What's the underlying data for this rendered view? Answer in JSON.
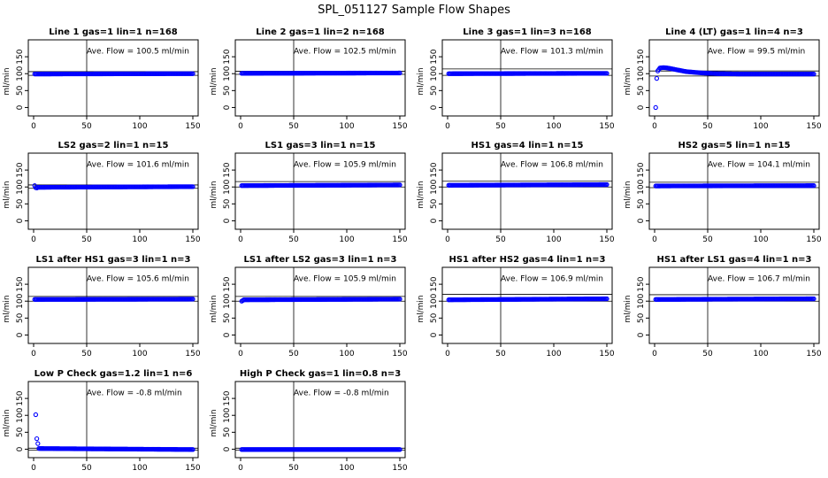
{
  "figure": {
    "title": "SPL_051127  Sample Flow Shapes",
    "colors": {
      "points": "#0000ff",
      "axes": "#000000",
      "background": "#ffffff"
    }
  },
  "chart_data": [
    {
      "type": "scatter",
      "title": "Line 1 gas=1 lin=1 n=168",
      "annotation": "Ave. Flow =  100.5  ml/min",
      "ylabel": "ml/min",
      "xlim": [
        0,
        150
      ],
      "ylim": [
        -25,
        200
      ],
      "xticks": [
        0,
        50,
        100,
        150
      ],
      "yticks": [
        0,
        50,
        100,
        150
      ],
      "hlines": [
        95,
        106
      ],
      "vline": 50,
      "series": [
        {
          "name": "flow",
          "points": [
            [
              1,
              99
            ],
            [
              150,
              100
            ]
          ],
          "profile": "flat",
          "level": 100
        }
      ]
    },
    {
      "type": "scatter",
      "title": "Line 2 gas=1 lin=2 n=168",
      "annotation": "Ave. Flow =  102.5  ml/min",
      "ylabel": "ml/min",
      "xlim": [
        0,
        150
      ],
      "ylim": [
        -25,
        200
      ],
      "xticks": [
        0,
        50,
        100,
        150
      ],
      "yticks": [
        0,
        50,
        100,
        150
      ],
      "hlines": [
        98,
        107
      ],
      "vline": 50,
      "series": [
        {
          "name": "flow",
          "points": [
            [
              1,
              101
            ],
            [
              150,
              102
            ]
          ],
          "profile": "flat",
          "level": 102
        }
      ]
    },
    {
      "type": "scatter",
      "title": "Line 3 gas=1 lin=3 n=168",
      "annotation": "Ave. Flow =  101.3  ml/min",
      "ylabel": "ml/min",
      "xlim": [
        0,
        150
      ],
      "ylim": [
        -25,
        200
      ],
      "xticks": [
        0,
        50,
        100,
        150
      ],
      "yticks": [
        0,
        50,
        100,
        150
      ],
      "hlines": [
        95,
        114
      ],
      "vline": 50,
      "series": [
        {
          "name": "flow",
          "points": [
            [
              1,
              100
            ],
            [
              150,
              101
            ]
          ],
          "profile": "flat",
          "level": 101
        }
      ]
    },
    {
      "type": "scatter",
      "title": "Line 4 (LT) gas=1 lin=4 n=3",
      "annotation": "Ave. Flow =  99.5  ml/min",
      "ylabel": "ml/min",
      "xlim": [
        0,
        150
      ],
      "ylim": [
        -25,
        200
      ],
      "xticks": [
        0,
        50,
        100,
        150
      ],
      "yticks": [
        0,
        50,
        100,
        150
      ],
      "hlines": [
        93,
        108
      ],
      "vline": 50,
      "series": [
        {
          "name": "flow",
          "points": [
            [
              1,
              0
            ],
            [
              2,
              86
            ],
            [
              3,
              108
            ],
            [
              5,
              117
            ],
            [
              8,
              118
            ],
            [
              12,
              117
            ],
            [
              20,
              112
            ],
            [
              30,
              106
            ],
            [
              45,
              102
            ],
            [
              60,
              100
            ],
            [
              80,
              99
            ],
            [
              150,
              99
            ]
          ],
          "profile": "startup",
          "level": 99
        }
      ]
    },
    {
      "type": "scatter",
      "title": "LS2 gas=2 lin=1 n=15",
      "annotation": "Ave. Flow =  101.6  ml/min",
      "ylabel": "ml/min",
      "xlim": [
        0,
        150
      ],
      "ylim": [
        -25,
        200
      ],
      "xticks": [
        0,
        50,
        100,
        150
      ],
      "yticks": [
        0,
        50,
        100,
        150
      ],
      "hlines": [
        96,
        106
      ],
      "vline": 50,
      "series": [
        {
          "name": "flow",
          "points": [
            [
              1,
              104
            ],
            [
              2,
              98
            ],
            [
              3,
              97
            ],
            [
              4,
              99
            ],
            [
              150,
              101
            ]
          ],
          "profile": "flat",
          "level": 101
        }
      ]
    },
    {
      "type": "scatter",
      "title": "LS1 gas=3 lin=1 n=15",
      "annotation": "Ave. Flow =  105.9  ml/min",
      "ylabel": "ml/min",
      "xlim": [
        0,
        150
      ],
      "ylim": [
        -25,
        200
      ],
      "xticks": [
        0,
        50,
        100,
        150
      ],
      "yticks": [
        0,
        50,
        100,
        150
      ],
      "hlines": [
        100,
        116
      ],
      "vline": 50,
      "series": [
        {
          "name": "flow",
          "points": [
            [
              1,
              104
            ],
            [
              150,
              106
            ]
          ],
          "profile": "flat",
          "level": 106
        }
      ]
    },
    {
      "type": "scatter",
      "title": "HS1 gas=4 lin=1 n=15",
      "annotation": "Ave. Flow =  106.8  ml/min",
      "ylabel": "ml/min",
      "xlim": [
        0,
        150
      ],
      "ylim": [
        -25,
        200
      ],
      "xticks": [
        0,
        50,
        100,
        150
      ],
      "yticks": [
        0,
        50,
        100,
        150
      ],
      "hlines": [
        100,
        117
      ],
      "vline": 50,
      "series": [
        {
          "name": "flow",
          "points": [
            [
              1,
              105
            ],
            [
              150,
              107
            ]
          ],
          "profile": "flat",
          "level": 107
        }
      ]
    },
    {
      "type": "scatter",
      "title": "HS2 gas=5 lin=1 n=15",
      "annotation": "Ave. Flow =  104.1  ml/min",
      "ylabel": "ml/min",
      "xlim": [
        0,
        150
      ],
      "ylim": [
        -25,
        200
      ],
      "xticks": [
        0,
        50,
        100,
        150
      ],
      "yticks": [
        0,
        50,
        100,
        150
      ],
      "hlines": [
        98,
        114
      ],
      "vline": 50,
      "series": [
        {
          "name": "flow",
          "points": [
            [
              1,
              103
            ],
            [
              150,
              104
            ]
          ],
          "profile": "flat",
          "level": 104
        }
      ]
    },
    {
      "type": "scatter",
      "title": "LS1 after HS1 gas=3 lin=1 n=3",
      "annotation": "Ave. Flow =  105.6  ml/min",
      "ylabel": "ml/min",
      "xlim": [
        0,
        150
      ],
      "ylim": [
        -25,
        200
      ],
      "xticks": [
        0,
        50,
        100,
        150
      ],
      "yticks": [
        0,
        50,
        100,
        150
      ],
      "hlines": [
        100,
        114
      ],
      "vline": 50,
      "series": [
        {
          "name": "flow",
          "points": [
            [
              1,
              105
            ],
            [
              150,
              106
            ]
          ],
          "profile": "flat",
          "level": 106
        }
      ]
    },
    {
      "type": "scatter",
      "title": "LS1 after LS2 gas=3 lin=1 n=3",
      "annotation": "Ave. Flow =  105.9  ml/min",
      "ylabel": "ml/min",
      "xlim": [
        0,
        150
      ],
      "ylim": [
        -25,
        200
      ],
      "xticks": [
        0,
        50,
        100,
        150
      ],
      "yticks": [
        0,
        50,
        100,
        150
      ],
      "hlines": [
        100,
        114
      ],
      "vline": 50,
      "series": [
        {
          "name": "flow",
          "points": [
            [
              1,
              100
            ],
            [
              3,
              104
            ],
            [
              150,
              106
            ]
          ],
          "profile": "flat",
          "level": 106
        }
      ]
    },
    {
      "type": "scatter",
      "title": "HS1 after HS2 gas=4 lin=1 n=3",
      "annotation": "Ave. Flow =  106.9  ml/min",
      "ylabel": "ml/min",
      "xlim": [
        0,
        150
      ],
      "ylim": [
        -25,
        200
      ],
      "xticks": [
        0,
        50,
        100,
        150
      ],
      "yticks": [
        0,
        50,
        100,
        150
      ],
      "hlines": [
        100,
        120
      ],
      "vline": 50,
      "series": [
        {
          "name": "flow",
          "points": [
            [
              1,
              104
            ],
            [
              150,
              107
            ]
          ],
          "profile": "flat",
          "level": 107
        }
      ]
    },
    {
      "type": "scatter",
      "title": "HS1 after LS1 gas=4 lin=1 n=3",
      "annotation": "Ave. Flow =  106.7  ml/min",
      "ylabel": "ml/min",
      "xlim": [
        0,
        150
      ],
      "ylim": [
        -25,
        200
      ],
      "xticks": [
        0,
        50,
        100,
        150
      ],
      "yticks": [
        0,
        50,
        100,
        150
      ],
      "hlines": [
        100,
        119
      ],
      "vline": 50,
      "series": [
        {
          "name": "flow",
          "points": [
            [
              1,
              105
            ],
            [
              150,
              107
            ]
          ],
          "profile": "flat",
          "level": 107
        }
      ]
    },
    {
      "type": "scatter",
      "title": "Low P Check gas=1.2 lin=1 n=6",
      "annotation": "Ave. Flow =  -0.8  ml/min",
      "ylabel": "ml/min",
      "xlim": [
        0,
        150
      ],
      "ylim": [
        -25,
        200
      ],
      "xticks": [
        0,
        50,
        100,
        150
      ],
      "yticks": [
        0,
        50,
        100,
        150
      ],
      "hlines": [
        -3,
        3
      ],
      "vline": 50,
      "series": [
        {
          "name": "flow",
          "points": [
            [
              2,
              102
            ],
            [
              3,
              31
            ],
            [
              5,
              2
            ],
            [
              150,
              -1
            ]
          ],
          "profile": "flat",
          "level": -1
        }
      ]
    },
    {
      "type": "scatter",
      "title": "High P Check gas=1 lin=0.8 n=3",
      "annotation": "Ave. Flow =  -0.8  ml/min",
      "ylabel": "ml/min",
      "xlim": [
        0,
        150
      ],
      "ylim": [
        -25,
        200
      ],
      "xticks": [
        0,
        50,
        100,
        150
      ],
      "yticks": [
        0,
        50,
        100,
        150
      ],
      "hlines": [
        -3,
        3
      ],
      "vline": 50,
      "series": [
        {
          "name": "flow",
          "points": [
            [
              1,
              -1
            ],
            [
              150,
              -1
            ]
          ],
          "profile": "flat",
          "level": -1
        }
      ]
    }
  ]
}
